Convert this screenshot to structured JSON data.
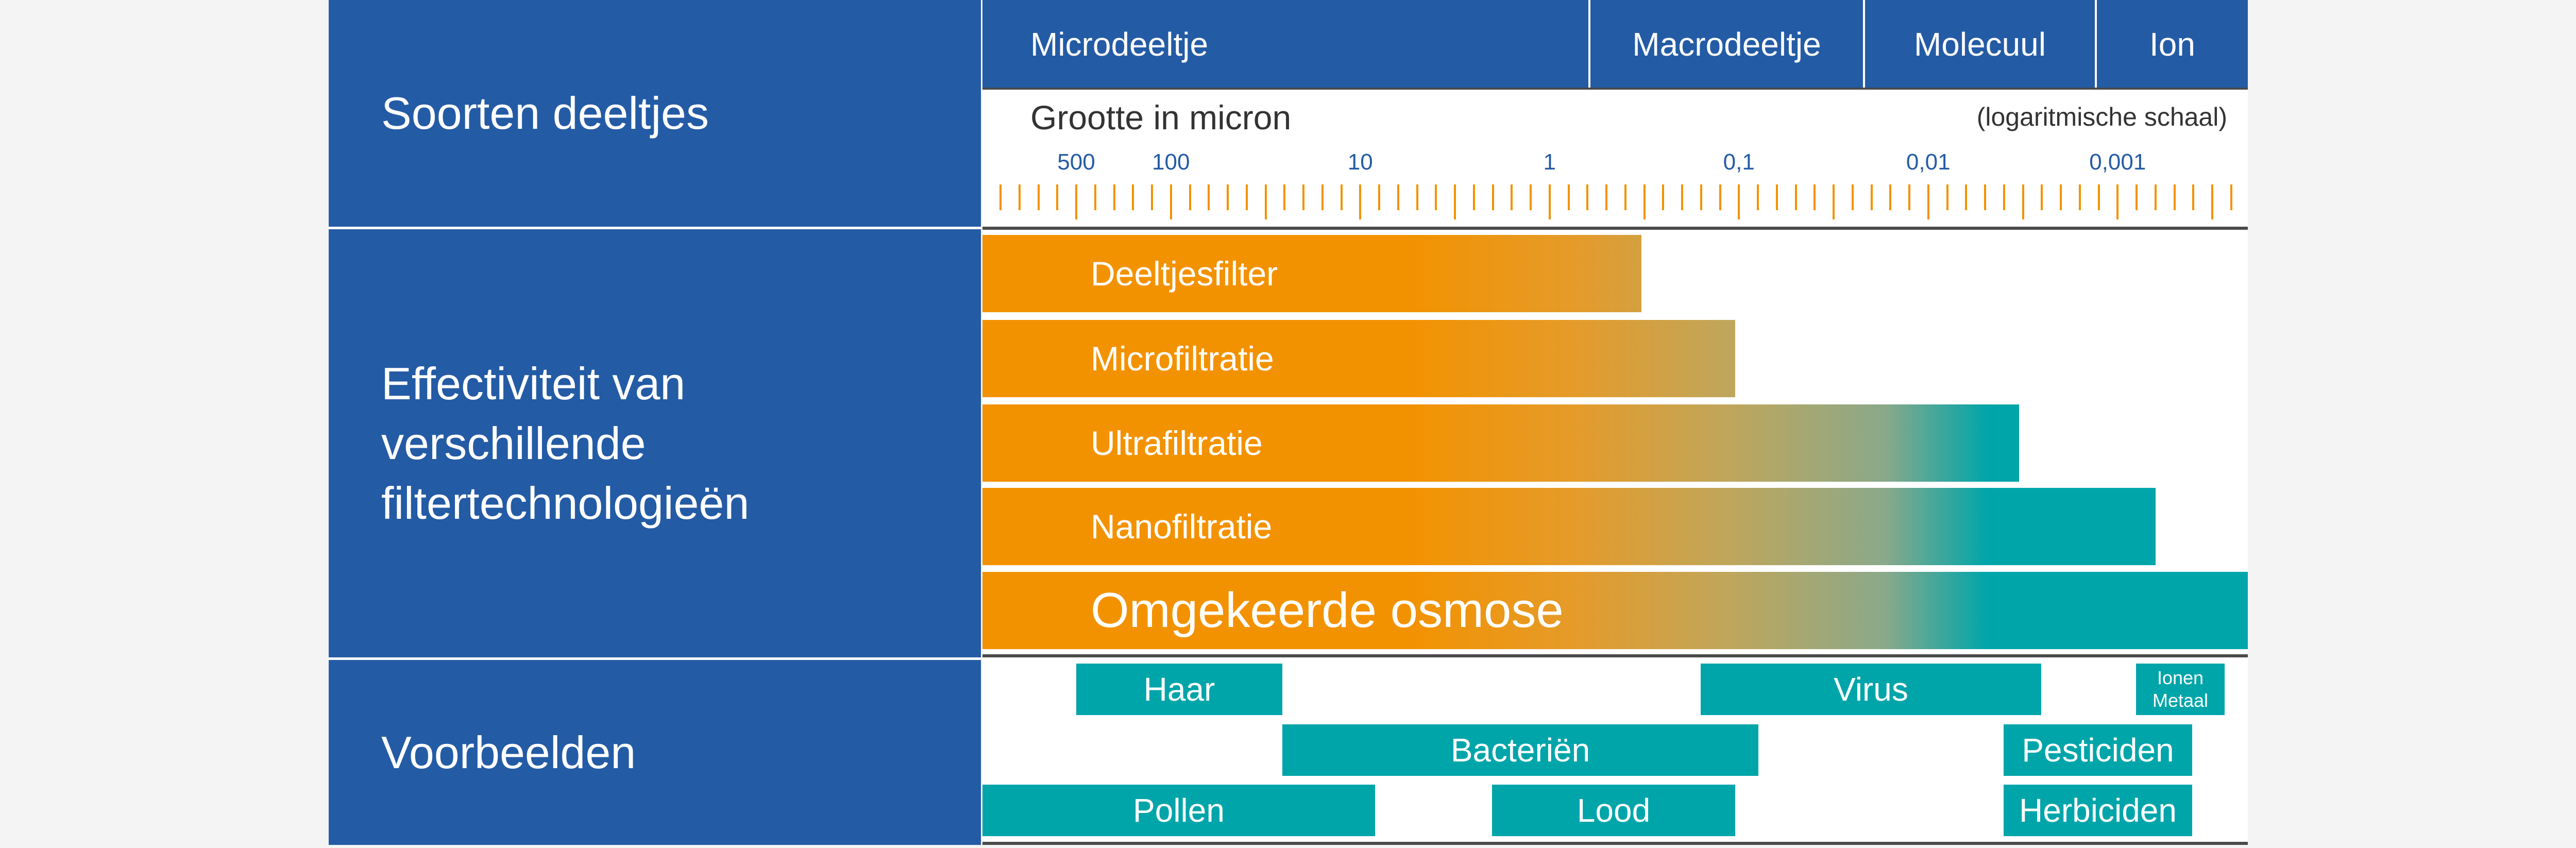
{
  "left_panel": {
    "rows": [
      "Soorten deeltjes",
      "Effectiviteit van verschillende filtertechnologieën",
      "Voorbeelden"
    ]
  },
  "header": {
    "categories": [
      "Microdeeltje",
      "Macrodeeltje",
      "Molecuul",
      "Ion"
    ]
  },
  "scale": {
    "title": "Grootte in micron",
    "note": "(logaritmische schaal)",
    "tick_labels": [
      "500",
      "100",
      "10",
      "1",
      "0,1",
      "0,01",
      "0,001"
    ]
  },
  "filters": [
    {
      "label": "Deeltjesfilter"
    },
    {
      "label": "Microfiltratie"
    },
    {
      "label": "Ultrafiltratie"
    },
    {
      "label": "Nanofiltratie"
    },
    {
      "label": "Omgekeerde osmose"
    }
  ],
  "examples": {
    "haar": "Haar",
    "virus": "Virus",
    "ionen": "Ionen",
    "metaal": "Metaal",
    "bacterien": "Bacteriën",
    "pesticiden": "Pesticiden",
    "pollen": "Pollen",
    "lood": "Lood",
    "herbiciden": "Herbiciden"
  },
  "colors": {
    "blue": "#245ba5",
    "orange": "#f39200",
    "teal": "#00a5aa"
  }
}
